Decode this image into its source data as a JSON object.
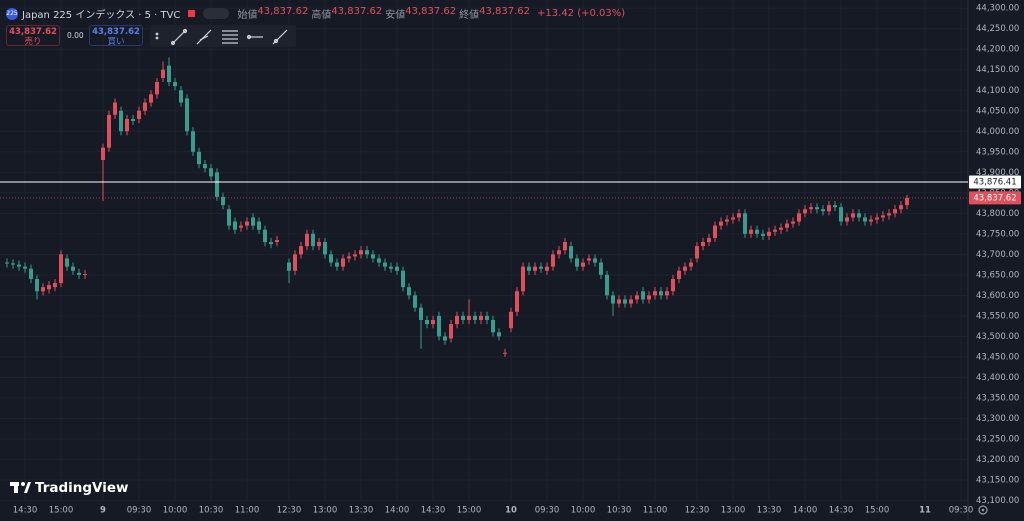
{
  "chart_data": {
    "type": "candlestick",
    "symbol_icon": "225",
    "title": "Japan 225 インデックス · 5 · TVC",
    "ohlc_legend": [
      {
        "label": "始値",
        "value": "43,837.62"
      },
      {
        "label": "高値",
        "value": "43,837.62"
      },
      {
        "label": "安値",
        "value": "43,837.62"
      },
      {
        "label": "終値",
        "value": "43,837.62"
      }
    ],
    "change": "+13.42 (+0.03%)",
    "sell": {
      "price": "43,837.62",
      "label": "売り"
    },
    "spread": "0.00",
    "buy": {
      "price": "43,837.62",
      "label": "買い"
    },
    "brand": "TradingView",
    "up_color": "#e0505c",
    "down_color": "#3a9c8c",
    "grid": true,
    "categories": [
      null,
      null,
      null,
      "14:30",
      null,
      null,
      null,
      null,
      null,
      "15:00",
      null,
      null,
      null,
      null,
      null,
      null,
      "9",
      null,
      null,
      null,
      null,
      null,
      "09:30",
      null,
      null,
      null,
      null,
      null,
      "10:00",
      null,
      null,
      null,
      null,
      null,
      "10:30",
      null,
      null,
      null,
      null,
      null,
      "11:00",
      null,
      null,
      null,
      null,
      null,
      null,
      "12:30",
      null,
      null,
      null,
      null,
      null,
      "13:00",
      null,
      null,
      null,
      null,
      null,
      "13:30",
      null,
      null,
      null,
      null,
      null,
      "14:00",
      null,
      null,
      null,
      null,
      null,
      "14:30",
      null,
      null,
      null,
      null,
      null,
      "15:00",
      null,
      null,
      null,
      null,
      null,
      null,
      "10",
      null,
      null,
      null,
      null,
      null,
      "09:30",
      null,
      null,
      null,
      null,
      null,
      "10:00",
      null,
      null,
      null,
      null,
      null,
      "10:30",
      null,
      null,
      null,
      null,
      null,
      "11:00",
      null,
      null,
      null,
      null,
      null,
      null,
      "12:30",
      null,
      null,
      null,
      null,
      null,
      "13:00",
      null,
      null,
      null,
      null,
      null,
      "13:30",
      null,
      null,
      null,
      null,
      null,
      "14:00",
      null,
      null,
      null,
      null,
      null,
      "14:30",
      null,
      null,
      null,
      null,
      null,
      "15:00",
      null,
      null,
      null,
      null,
      null,
      null,
      null,
      "11",
      null,
      null,
      null,
      null,
      null,
      "09:30"
    ],
    "open": [
      43680,
      43678,
      43675,
      43670,
      43665,
      43640,
      43610,
      43615,
      43620,
      43630,
      43690,
      43670,
      43655,
      43650,
      null,
      null,
      43930,
      43960,
      44040,
      44050,
      44000,
      44030,
      44030,
      44050,
      44070,
      44090,
      44130,
      44160,
      44120,
      44100,
      44080,
      44000,
      43950,
      43920,
      43910,
      43900,
      43840,
      43810,
      43780,
      43765,
      43770,
      43790,
      43780,
      43760,
      43730,
      43730,
      null,
      43680,
      43660,
      43700,
      43720,
      43750,
      43720,
      43730,
      43700,
      43680,
      43670,
      43690,
      43695,
      43700,
      43710,
      43700,
      43690,
      43680,
      43670,
      43670,
      43660,
      43620,
      43600,
      43570,
      43540,
      43530,
      43550,
      43500,
      43495,
      43530,
      43550,
      43540,
      43550,
      43540,
      43550,
      43540,
      43510,
      43460,
      43520,
      43560,
      43610,
      43670,
      43660,
      43670,
      43660,
      43670,
      43700,
      43710,
      43720,
      43690,
      43670,
      43685,
      43690,
      43680,
      43650,
      43600,
      43580,
      43590,
      43580,
      43590,
      43610,
      43590,
      43600,
      43610,
      43600,
      43610,
      43640,
      43660,
      43670,
      43690,
      43720,
      43730,
      43740,
      43770,
      43780,
      43785,
      43790,
      43800,
      43750,
      43760,
      43750,
      43745,
      43755,
      43760,
      43765,
      43775,
      43780,
      43800,
      43810,
      43815,
      43810,
      43805,
      43820,
      43815,
      43780,
      43790,
      43800,
      43790,
      43780,
      43785,
      43790,
      43795,
      43800,
      43810,
      43820,
      null,
      null,
      null,
      null,
      null,
      null,
      null,
      null,
      null
    ],
    "high": [
      43690,
      43688,
      43685,
      43680,
      43675,
      43650,
      43630,
      43635,
      43640,
      43710,
      43700,
      43680,
      43665,
      43662,
      null,
      null,
      43970,
      44050,
      44080,
      44060,
      44040,
      44040,
      44060,
      44080,
      44100,
      44130,
      44170,
      44180,
      44130,
      44110,
      44090,
      44010,
      43960,
      43930,
      43920,
      43910,
      43850,
      43820,
      43790,
      43780,
      43790,
      43800,
      43790,
      43770,
      43740,
      43745,
      null,
      43690,
      43710,
      43730,
      43760,
      43760,
      43740,
      43740,
      43710,
      43690,
      43700,
      43705,
      43710,
      43720,
      43720,
      43710,
      43700,
      43690,
      43680,
      43680,
      43670,
      43630,
      43610,
      43580,
      43550,
      43550,
      43560,
      43510,
      43540,
      43560,
      43560,
      43590,
      43560,
      43560,
      43560,
      43550,
      43520,
      43470,
      43570,
      43620,
      43680,
      43680,
      43680,
      43680,
      43680,
      43710,
      43720,
      43740,
      43730,
      43700,
      43690,
      43700,
      43700,
      43690,
      43660,
      43610,
      43600,
      43600,
      43600,
      43610,
      43620,
      43610,
      43620,
      43620,
      43620,
      43650,
      43670,
      43680,
      43690,
      43730,
      43740,
      43750,
      43780,
      43790,
      43795,
      43800,
      43810,
      43810,
      43770,
      43770,
      43760,
      43765,
      43770,
      43775,
      43785,
      43790,
      43810,
      43820,
      43825,
      43825,
      43820,
      43830,
      43830,
      43825,
      43800,
      43810,
      43810,
      43800,
      43795,
      43800,
      43805,
      43810,
      43820,
      43830,
      43845,
      null,
      null,
      null,
      null,
      null,
      null,
      null,
      null,
      null
    ],
    "low": [
      43668,
      43665,
      43660,
      43655,
      43630,
      43590,
      43600,
      43605,
      43610,
      43620,
      43660,
      43650,
      43640,
      43640,
      null,
      null,
      43830,
      43950,
      44030,
      43990,
      43990,
      44015,
      44020,
      44040,
      44060,
      44080,
      44120,
      44110,
      44100,
      44060,
      43990,
      43940,
      43910,
      43900,
      43880,
      43830,
      43810,
      43760,
      43750,
      43755,
      43760,
      43760,
      43750,
      43720,
      43715,
      43720,
      null,
      43630,
      43650,
      43690,
      43710,
      43710,
      43710,
      43690,
      43670,
      43660,
      43660,
      43680,
      43685,
      43690,
      43690,
      43680,
      43670,
      43660,
      43655,
      43650,
      43610,
      43590,
      43560,
      43470,
      43520,
      43520,
      43490,
      43480,
      43485,
      43520,
      43530,
      43530,
      43530,
      43530,
      43530,
      43500,
      43490,
      43450,
      43510,
      43550,
      43600,
      43650,
      43650,
      43655,
      43650,
      43660,
      43690,
      43700,
      43680,
      43660,
      43660,
      43675,
      43670,
      43640,
      43590,
      43550,
      43570,
      43570,
      43570,
      43580,
      43580,
      43580,
      43590,
      43590,
      43590,
      43600,
      43630,
      43650,
      43660,
      43680,
      43710,
      43720,
      43730,
      43760,
      43770,
      43775,
      43780,
      43740,
      43740,
      43740,
      43735,
      43735,
      43745,
      43750,
      43755,
      43765,
      43770,
      43790,
      43800,
      43800,
      43795,
      43795,
      43805,
      43770,
      43770,
      43780,
      43780,
      43770,
      43770,
      43775,
      43780,
      43785,
      43790,
      43800,
      43810,
      null,
      null,
      null,
      null,
      null,
      null,
      null,
      null,
      null
    ],
    "close": [
      43678,
      43675,
      43670,
      43665,
      43640,
      43610,
      43620,
      43625,
      43630,
      43700,
      43670,
      43660,
      43650,
      43652,
      null,
      null,
      43960,
      44040,
      44070,
      44000,
      44030,
      44025,
      44050,
      44070,
      44090,
      44120,
      44150,
      44120,
      44110,
      44070,
      44000,
      43950,
      43920,
      43910,
      43890,
      43840,
      43820,
      43770,
      43760,
      43770,
      43780,
      43770,
      43760,
      43730,
      43725,
      43735,
      null,
      43660,
      43700,
      43720,
      43750,
      43720,
      43730,
      43700,
      43680,
      43670,
      43690,
      43695,
      43700,
      43710,
      43700,
      43690,
      43680,
      43670,
      43665,
      43660,
      43620,
      43600,
      43570,
      43540,
      43530,
      43540,
      43500,
      43490,
      43530,
      43550,
      43540,
      43550,
      43540,
      43550,
      43540,
      43510,
      43500,
      43460,
      43560,
      43610,
      43670,
      43660,
      43670,
      43665,
      43670,
      43700,
      43710,
      43730,
      43690,
      43670,
      43680,
      43690,
      43680,
      43650,
      43600,
      43580,
      43590,
      43580,
      43590,
      43600,
      43590,
      43600,
      43610,
      43600,
      43610,
      43640,
      43660,
      43670,
      43680,
      43720,
      43730,
      43740,
      43770,
      43780,
      43785,
      43790,
      43800,
      43750,
      43760,
      43750,
      43745,
      43755,
      43760,
      43765,
      43775,
      43780,
      43800,
      43810,
      43815,
      43810,
      43805,
      43820,
      43815,
      43780,
      43790,
      43800,
      43790,
      43780,
      43785,
      43790,
      43795,
      43800,
      43810,
      43820,
      43837.62,
      null,
      null,
      null,
      null,
      null,
      null,
      null,
      null,
      null
    ],
    "ylim": [
      43050,
      44320
    ],
    "yticks": [
      {
        "value": 43100,
        "label": "43,100.00"
      },
      {
        "value": 43150,
        "label": "43,150.00"
      },
      {
        "value": 43200,
        "label": "43,200.00"
      },
      {
        "value": 43250,
        "label": "43,250.00"
      },
      {
        "value": 43300,
        "label": "43,300.00"
      },
      {
        "value": 43350,
        "label": "43,350.00"
      },
      {
        "value": 43400,
        "label": "43,400.00"
      },
      {
        "value": 43450,
        "label": "43,450.00"
      },
      {
        "value": 43500,
        "label": "43,500.00"
      },
      {
        "value": 43550,
        "label": "43,550.00"
      },
      {
        "value": 43600,
        "label": "43,600.00"
      },
      {
        "value": 43650,
        "label": "43,650.00"
      },
      {
        "value": 43700,
        "label": "43,700.00"
      },
      {
        "value": 43750,
        "label": "43,750.00"
      },
      {
        "value": 43800,
        "label": "43,800.00"
      },
      {
        "value": 43850,
        "label": "43,850.00"
      },
      {
        "value": 43900,
        "label": "43,900.00"
      },
      {
        "value": 43950,
        "label": "43,950.00"
      },
      {
        "value": 44000,
        "label": "44,000.00"
      },
      {
        "value": 44050,
        "label": "44,050.00"
      },
      {
        "value": 44100,
        "label": "44,100.00"
      },
      {
        "value": 44150,
        "label": "44,150.00"
      },
      {
        "value": 44200,
        "label": "44,200.00"
      },
      {
        "value": 44250,
        "label": "44,250.00"
      },
      {
        "value": 44300,
        "label": "44,300.00"
      }
    ],
    "horizontal_line": {
      "value": 43876.41,
      "label": "43,876.41",
      "color": "#ffffff"
    },
    "last_price": {
      "value": 43837.62,
      "label": "43,837.62",
      "color": "#e0505c"
    }
  }
}
